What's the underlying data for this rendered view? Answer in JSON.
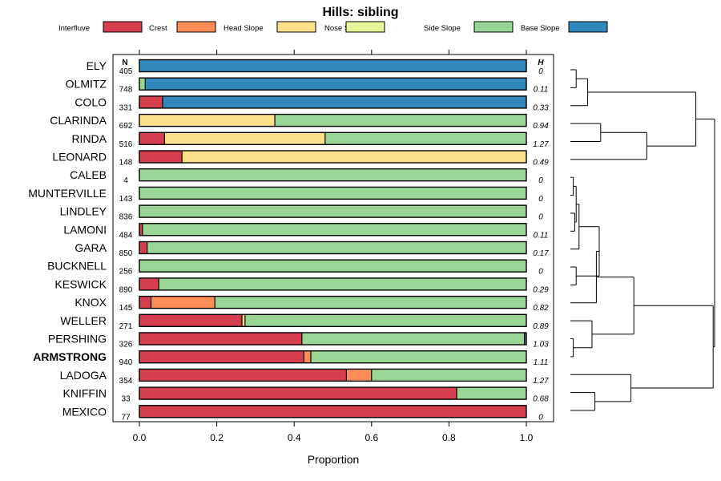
{
  "chart_data": {
    "type": "bar",
    "subtype": "stacked-horizontal-proportion",
    "title": "Hills: sibling",
    "xlabel": "Proportion",
    "ylabel": "",
    "xlim": [
      0,
      1
    ],
    "x_ticks": [
      "0.0",
      "0.2",
      "0.4",
      "0.6",
      "0.8",
      "1.0"
    ],
    "n_header": "N",
    "h_header": "H",
    "legend": [
      {
        "name": "Interfluve",
        "color": "#d53e4f"
      },
      {
        "name": "Crest",
        "color": "#fc8d59"
      },
      {
        "name": "Head Slope",
        "color": "#fee08b"
      },
      {
        "name": "Nose Slope",
        "color": "#e6f598"
      },
      {
        "name": "Side Slope",
        "color": "#99d594"
      },
      {
        "name": "Base Slope",
        "color": "#3288bd"
      }
    ],
    "categories": [
      "ELY",
      "OLMITZ",
      "COLO",
      "CLARINDA",
      "RINDA",
      "LEONARD",
      "CALEB",
      "MUNTERVILLE",
      "LINDLEY",
      "LAMONI",
      "GARA",
      "BUCKNELL",
      "KESWICK",
      "KNOX",
      "WELLER",
      "PERSHING",
      "ARMSTRONG",
      "LADOGA",
      "KNIFFIN",
      "MEXICO"
    ],
    "highlighted": "ARMSTRONG",
    "n": [
      "405",
      "748",
      "331",
      "692",
      "516",
      "148",
      "4",
      "143",
      "836",
      "484",
      "850",
      "256",
      "890",
      "145",
      "271",
      "326",
      "940",
      "354",
      "33",
      "77"
    ],
    "h": [
      "0",
      "0.11",
      "0.33",
      "0.94",
      "1.27",
      "0.49",
      "0",
      "0",
      "0",
      "0.11",
      "0.17",
      "0",
      "0.29",
      "0.82",
      "0.89",
      "1.03",
      "1.11",
      "1.27",
      "0.68",
      "0"
    ],
    "series": [
      {
        "name": "Interfluve",
        "values": [
          0,
          0,
          0.06,
          0,
          0.065,
          0.11,
          0,
          0,
          0,
          0.008,
          0.02,
          0,
          0.05,
          0.03,
          0.265,
          0.42,
          0.425,
          0.535,
          0.82,
          1.0
        ]
      },
      {
        "name": "Crest",
        "values": [
          0,
          0,
          0,
          0,
          0,
          0,
          0,
          0,
          0,
          0,
          0,
          0,
          0,
          0.165,
          0,
          0,
          0.018,
          0.065,
          0,
          0
        ]
      },
      {
        "name": "Head Slope",
        "values": [
          0,
          0,
          0,
          0.35,
          0.415,
          0.89,
          0,
          0,
          0,
          0,
          0,
          0,
          0,
          0,
          0.008,
          0,
          0,
          0,
          0,
          0
        ]
      },
      {
        "name": "Nose Slope",
        "values": [
          0,
          0,
          0,
          0,
          0,
          0,
          0,
          0,
          0,
          0,
          0,
          0,
          0,
          0,
          0,
          0,
          0,
          0,
          0,
          0
        ]
      },
      {
        "name": "Side Slope",
        "values": [
          0,
          0.015,
          0,
          0.65,
          0.52,
          0,
          1.0,
          1.0,
          1.0,
          0.992,
          0.98,
          1.0,
          0.95,
          0.805,
          0.727,
          0.575,
          0.557,
          0.4,
          0.18,
          0
        ]
      },
      {
        "name": "Base Slope",
        "values": [
          1.0,
          0.985,
          0.94,
          0,
          0,
          0,
          0,
          0,
          0,
          0,
          0,
          0,
          0,
          0,
          0,
          0.005,
          0,
          0,
          0,
          0
        ]
      }
    ],
    "dendrogram": {
      "orientation": "right-root",
      "leaf_order": "same as categories",
      "nodes": [
        {
          "a": 0,
          "b": 1,
          "height": 0.04
        },
        {
          "a": "n0",
          "b": 2,
          "height": 0.12
        },
        {
          "a": 3,
          "b": 4,
          "height": 0.21
        },
        {
          "a": "n2",
          "b": 5,
          "height": 0.53
        },
        {
          "a": "n1",
          "b": "n3",
          "height": 0.87
        },
        {
          "a": 6,
          "b": 7,
          "height": 0.02
        },
        {
          "a": 8,
          "b": 9,
          "height": 0.03
        },
        {
          "a": "n5",
          "b": "n6",
          "height": 0.04
        },
        {
          "a": "n7",
          "b": 10,
          "height": 0.06
        },
        {
          "a": 11,
          "b": 12,
          "height": 0.04
        },
        {
          "a": "n8",
          "b": "n9",
          "height": 0.2
        },
        {
          "a": "n10",
          "b": 13,
          "height": 0.18
        },
        {
          "a": 15,
          "b": 16,
          "height": 0.02
        },
        {
          "a": "n12",
          "b": 14,
          "height": 0.15
        },
        {
          "a": "n11",
          "b": "n13",
          "height": 0.44
        },
        {
          "a": 18,
          "b": 19,
          "height": 0.17
        },
        {
          "a": 17,
          "b": "n15",
          "height": 0.42
        },
        {
          "a": "n14",
          "b": "n16",
          "height": 0.99
        },
        {
          "a": "n4",
          "b": "n17",
          "height": 1.0
        }
      ]
    }
  }
}
